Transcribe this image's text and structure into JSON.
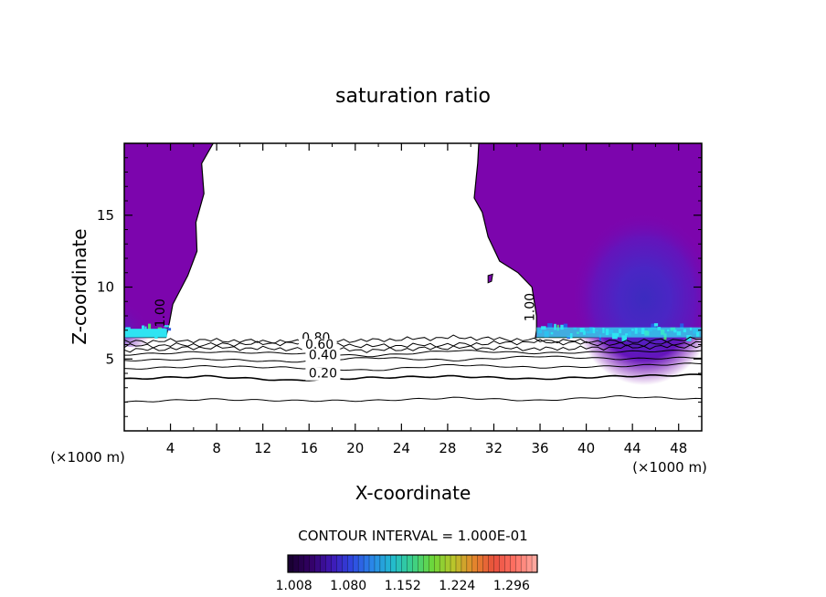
{
  "chart_data": {
    "type": "contour",
    "title": "saturation ratio",
    "xlabel": "X-coordinate",
    "ylabel": "Z-coordinate",
    "x_unit": "(×1000 m)",
    "z_unit": "(×1000 m)",
    "xlim": [
      0,
      50
    ],
    "ylim": [
      0,
      20
    ],
    "x_ticks": [
      4,
      8,
      12,
      16,
      20,
      24,
      28,
      32,
      36,
      40,
      44,
      48
    ],
    "y_ticks": [
      5,
      10,
      15
    ],
    "contour_interval_label": "CONTOUR INTERVAL = 1.000E-01",
    "contour_labels": [
      {
        "text": "1.00",
        "x": 3.5,
        "z": 8.2
      },
      {
        "text": "1.00",
        "x": 35.5,
        "z": 8.6
      },
      {
        "text": "0.80",
        "x": 16.6,
        "z": 6.2
      },
      {
        "text": "0.60",
        "x": 16.9,
        "z": 5.7
      },
      {
        "text": "0.40",
        "x": 17.2,
        "z": 5.0
      },
      {
        "text": "0.20",
        "x": 17.2,
        "z": 3.7
      }
    ],
    "contour_lines": [
      {
        "z": [
          2.0,
          2.2,
          2.1,
          2.1,
          2.3,
          2.1,
          2.4,
          2.2
        ]
      },
      {
        "z": [
          3.6,
          3.8,
          3.5,
          3.7,
          3.8,
          3.6,
          3.8,
          3.9
        ]
      },
      {
        "z": [
          4.3,
          4.5,
          4.4,
          4.2,
          4.6,
          4.4,
          4.5,
          4.7
        ]
      },
      {
        "z": [
          4.9,
          5.0,
          4.8,
          5.1,
          4.9,
          5.2,
          5.0,
          5.1
        ]
      },
      {
        "z": [
          5.3,
          5.5,
          5.4,
          5.2,
          5.6,
          5.4,
          5.5,
          5.6
        ]
      },
      {
        "z": [
          5.6,
          5.8,
          5.7,
          5.6,
          5.8,
          5.7,
          5.8,
          5.9
        ]
      },
      {
        "z": [
          5.9,
          6.0,
          6.1,
          5.9,
          6.0,
          6.2,
          6.0,
          6.1
        ]
      },
      {
        "z": [
          6.2,
          6.3,
          6.2,
          6.3,
          6.5,
          6.3,
          6.2,
          6.4
        ]
      }
    ],
    "supersaturated_regions": [
      {
        "name": "left",
        "boundary": [
          [
            0,
            20
          ],
          [
            7.7,
            20
          ],
          [
            6.7,
            18.6
          ],
          [
            6.9,
            16.5
          ],
          [
            6.2,
            14.5
          ],
          [
            6.3,
            12.5
          ],
          [
            5.5,
            10.8
          ],
          [
            4.2,
            8.8
          ],
          [
            3.9,
            7.5
          ],
          [
            3.6,
            6.5
          ],
          [
            0,
            6.5
          ]
        ]
      },
      {
        "name": "right",
        "boundary": [
          [
            50,
            20
          ],
          [
            30.7,
            20
          ],
          [
            30.6,
            18.6
          ],
          [
            30.5,
            17.8
          ],
          [
            30.3,
            16.2
          ],
          [
            31.0,
            15.2
          ],
          [
            31.5,
            13.5
          ],
          [
            32.5,
            11.8
          ],
          [
            34.1,
            11.0
          ],
          [
            35.3,
            10.0
          ],
          [
            35.7,
            8.0
          ],
          [
            35.7,
            7.0
          ],
          [
            35.6,
            6.5
          ],
          [
            50,
            6.5
          ]
        ]
      }
    ],
    "colorbar": {
      "tick_labels": [
        "1.008",
        "1.080",
        "1.152",
        "1.224",
        "1.296"
      ],
      "range": [
        1.0,
        1.33
      ],
      "colors": [
        "#1a0033",
        "#330066",
        "#3f17b3",
        "#2f47e0",
        "#2a86e8",
        "#22bbd0",
        "#3ad08a",
        "#6ed838",
        "#b9c52b",
        "#e4882c",
        "#e84f3c",
        "#ff7063",
        "#ffa79e"
      ]
    },
    "colors": {
      "supersat_fill": "#7c05ad",
      "core_dark": "#3c2bbf",
      "core_mid": "#5c1fc2",
      "base_cyan": "#2fe4f2",
      "base_blue": "#2b5ae6",
      "base_green": "#4dd96a"
    }
  }
}
